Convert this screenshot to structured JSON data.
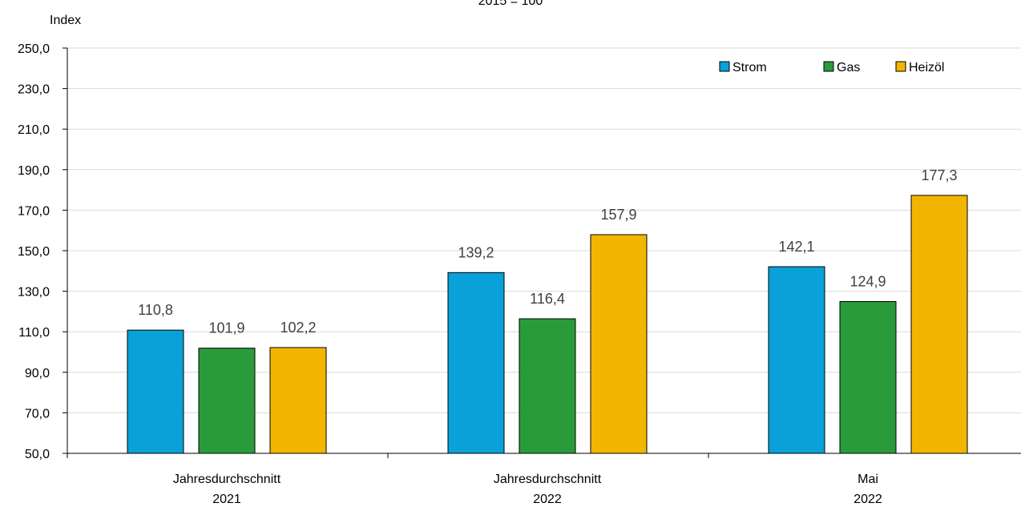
{
  "chart_data": {
    "type": "bar",
    "subtitle": "2015 = 100",
    "ylabel": "Index",
    "xlabel": "",
    "ylim": [
      50,
      250
    ],
    "yticks": [
      "50,0",
      "70,0",
      "90,0",
      "110,0",
      "130,0",
      "150,0",
      "170,0",
      "190,0",
      "210,0",
      "230,0",
      "250,0"
    ],
    "categories": [
      {
        "line1": "Jahresdurchschnitt",
        "line2": "2021"
      },
      {
        "line1": "Jahresdurchschnitt",
        "line2": "2022"
      },
      {
        "line1": "Mai",
        "line2": "2022"
      }
    ],
    "series": [
      {
        "name": "Strom",
        "color": "#0aa1d9",
        "values": [
          110.8,
          139.2,
          142.1
        ],
        "labels": [
          "110,8",
          "139,2",
          "142,1"
        ]
      },
      {
        "name": "Gas",
        "color": "#2a9b3a",
        "values": [
          101.9,
          116.4,
          124.9
        ],
        "labels": [
          "101,9",
          "116,4",
          "124,9"
        ]
      },
      {
        "name": "Heizöl",
        "color": "#f2b600",
        "values": [
          102.2,
          157.9,
          177.3
        ],
        "labels": [
          "102,2",
          "157,9",
          "177,3"
        ]
      }
    ],
    "grid": true,
    "legend": "top-right"
  }
}
